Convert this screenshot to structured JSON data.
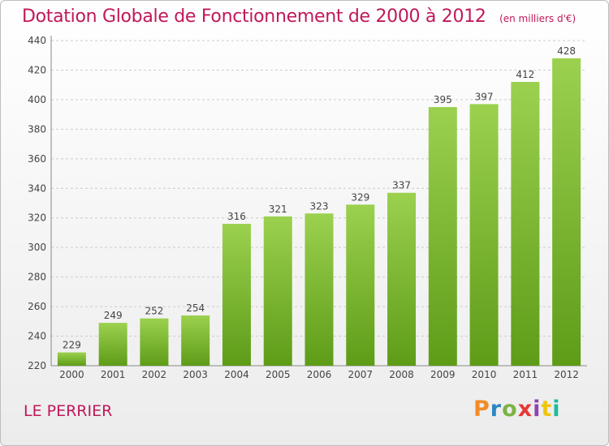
{
  "header": {
    "title": "Dotation Globale de Fonctionnement de 2000 à 2012",
    "unit": "(en milliers d'€)"
  },
  "footer": {
    "commune": "LE PERRIER",
    "logo": "Proxiti"
  },
  "colors": {
    "title": "#c0185a",
    "bar_top": "#9bd14f",
    "bar_bottom": "#5e9c18",
    "grid": "#cccccc"
  },
  "chart_data": {
    "type": "bar",
    "title": "Dotation Globale de Fonctionnement de 2000 à 2012",
    "subtitle": "(en milliers d'€)",
    "categories": [
      "2000",
      "2001",
      "2002",
      "2003",
      "2004",
      "2005",
      "2006",
      "2007",
      "2008",
      "2009",
      "2010",
      "2011",
      "2012"
    ],
    "values": [
      229,
      249,
      252,
      254,
      316,
      321,
      323,
      329,
      337,
      395,
      397,
      412,
      428
    ],
    "ylim": [
      220,
      440
    ],
    "yticks": [
      220,
      240,
      260,
      280,
      300,
      320,
      340,
      360,
      380,
      400,
      420,
      440
    ],
    "grid": true,
    "data_labels": true
  }
}
